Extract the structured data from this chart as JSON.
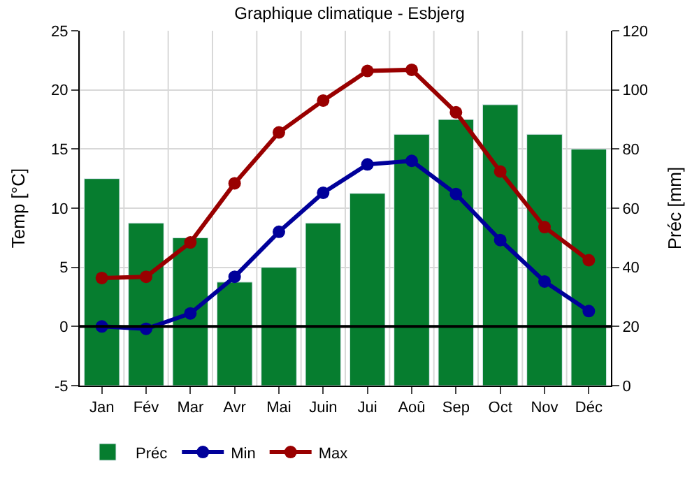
{
  "chart_data": {
    "type": "bar",
    "title": "Graphique climatique - Esbjerg",
    "ylabel": "Temp [°C]",
    "y2label": "Préc [mm]",
    "categories": [
      "Jan",
      "Fév",
      "Mar",
      "Avr",
      "Mai",
      "Juin",
      "Jui",
      "Aoû",
      "Sep",
      "Oct",
      "Nov",
      "Déc"
    ],
    "series": [
      {
        "name": "Préc",
        "axis": "y2",
        "color": "#067d2f",
        "values": [
          70,
          55,
          50,
          35,
          40,
          55,
          65,
          85,
          90,
          95,
          85,
          80
        ]
      },
      {
        "name": "Min",
        "type": "line",
        "color": "#00009a",
        "values": [
          0.0,
          -0.2,
          1.1,
          4.2,
          8.0,
          11.3,
          13.7,
          14.0,
          11.2,
          7.3,
          3.8,
          1.3
        ]
      },
      {
        "name": "Max",
        "type": "line",
        "color": "#990000",
        "values": [
          4.1,
          4.2,
          7.1,
          12.1,
          16.4,
          19.1,
          21.6,
          21.7,
          18.1,
          13.1,
          8.4,
          5.6
        ]
      }
    ],
    "ylim": [
      -5,
      25
    ],
    "yticks": [
      -5,
      0,
      5,
      10,
      15,
      20,
      25
    ],
    "y2lim": [
      0,
      120
    ],
    "y2ticks": [
      0,
      20,
      40,
      60,
      80,
      100,
      120
    ],
    "ref_lines": [
      {
        "axis": "y",
        "value": 0,
        "color": "#000000"
      }
    ],
    "grid": true,
    "legend": "bottom",
    "marker": "circle",
    "line_style": "solid"
  }
}
